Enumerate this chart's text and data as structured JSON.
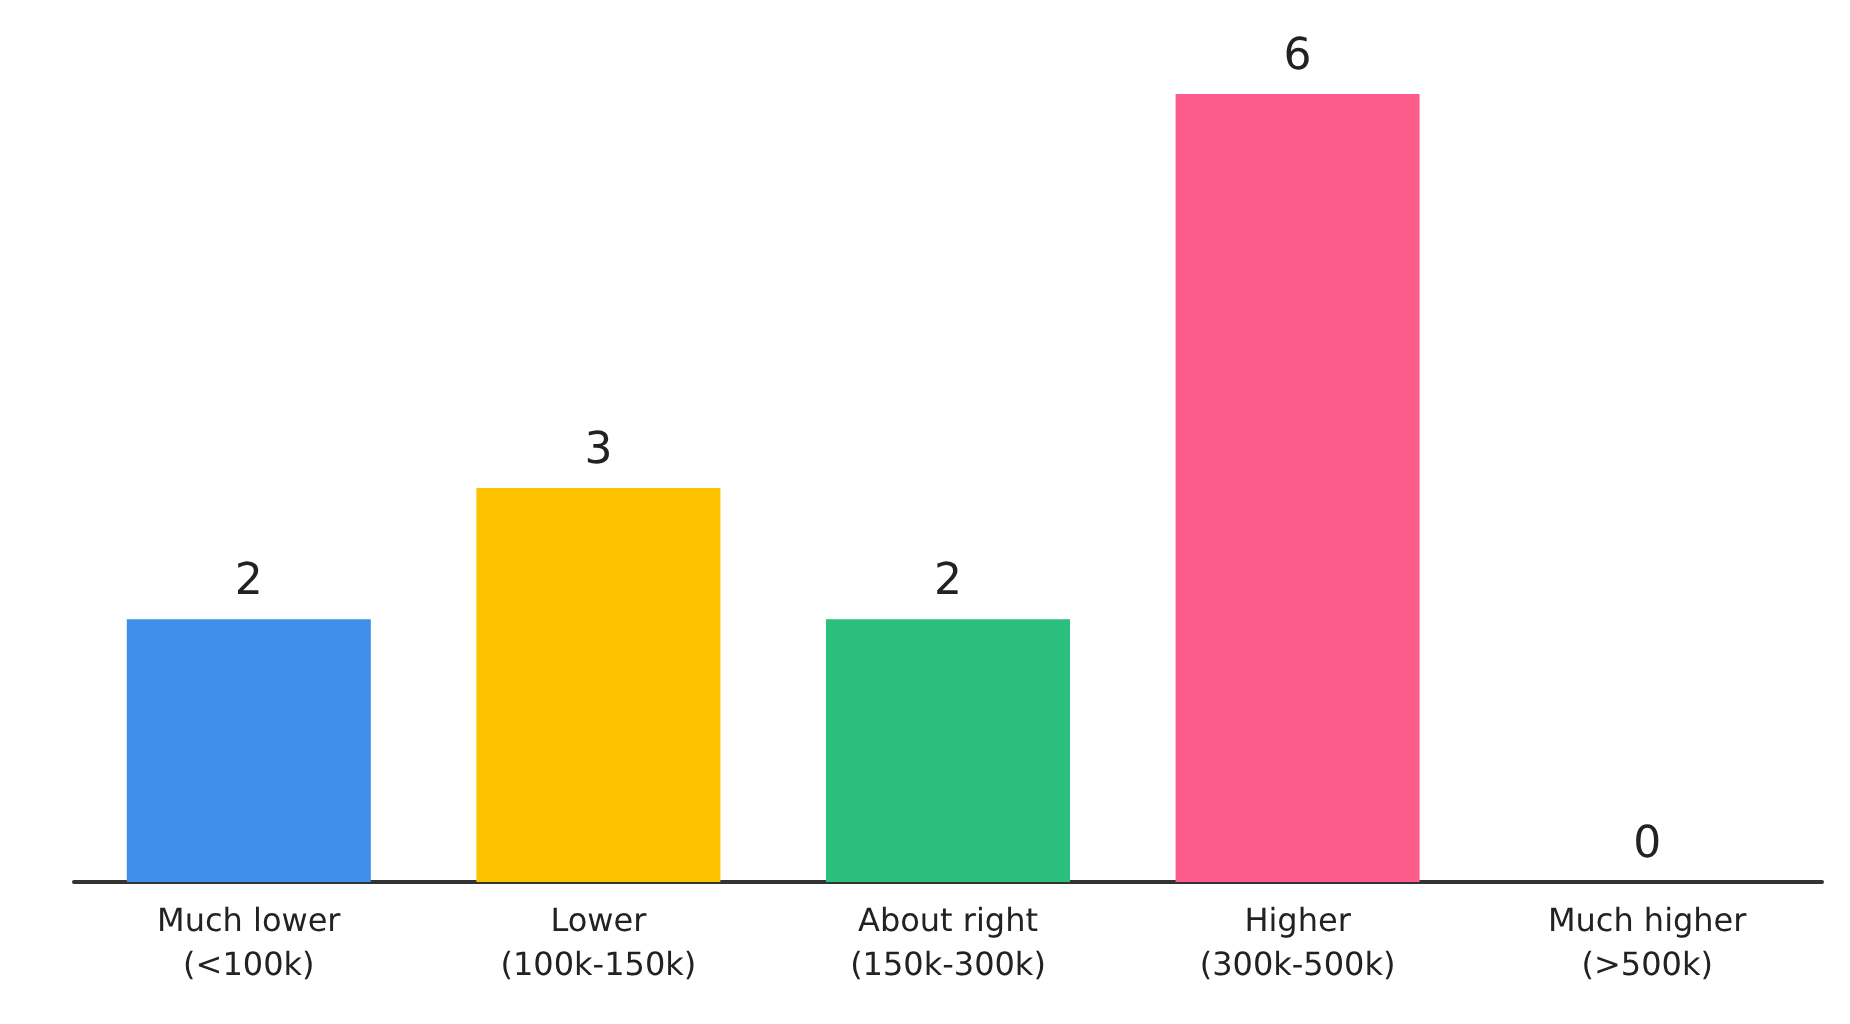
{
  "chart_data": {
    "type": "bar",
    "categories": [
      "Much lower\n(<100k)",
      "Lower\n(100k-150k)",
      "About right\n(150k-300k)",
      "Higher\n(300k-500k)",
      "Much higher\n(>500k)"
    ],
    "values": [
      2,
      3,
      2,
      6,
      0
    ],
    "colors": [
      "#3f8fea",
      "#fcc200",
      "#2bbf7e",
      "#fd5b8a",
      null
    ],
    "data_labels": true
  }
}
